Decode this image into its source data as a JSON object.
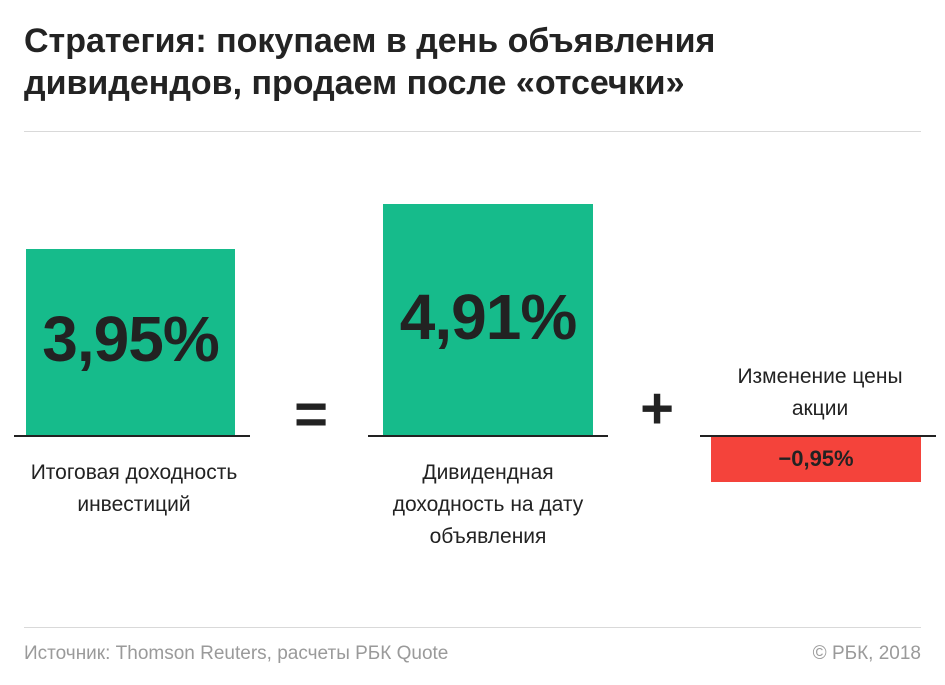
{
  "title": "Стратегия: покупаем в день объявления дивидендов, продаем после «отсечки»",
  "chart_data": {
    "type": "bar",
    "unit": "%",
    "items": [
      {
        "value": 3.95,
        "value_label": "3,95%",
        "label": "Итоговая доходность инвестиций",
        "color": "#16bb8b"
      },
      {
        "value": 4.91,
        "value_label": "4,91%",
        "label": "Дивидендная доходность на дату объявления",
        "color": "#16bb8b"
      },
      {
        "value": -0.95,
        "value_label": "−0,95%",
        "label": "Изменение цены акции",
        "color": "#f4433b"
      }
    ],
    "operators": [
      "=",
      "+"
    ]
  },
  "footer": {
    "source": "Источник: Thomson Reuters, расчеты РБК Quote",
    "copyright": "© РБК, 2018"
  }
}
